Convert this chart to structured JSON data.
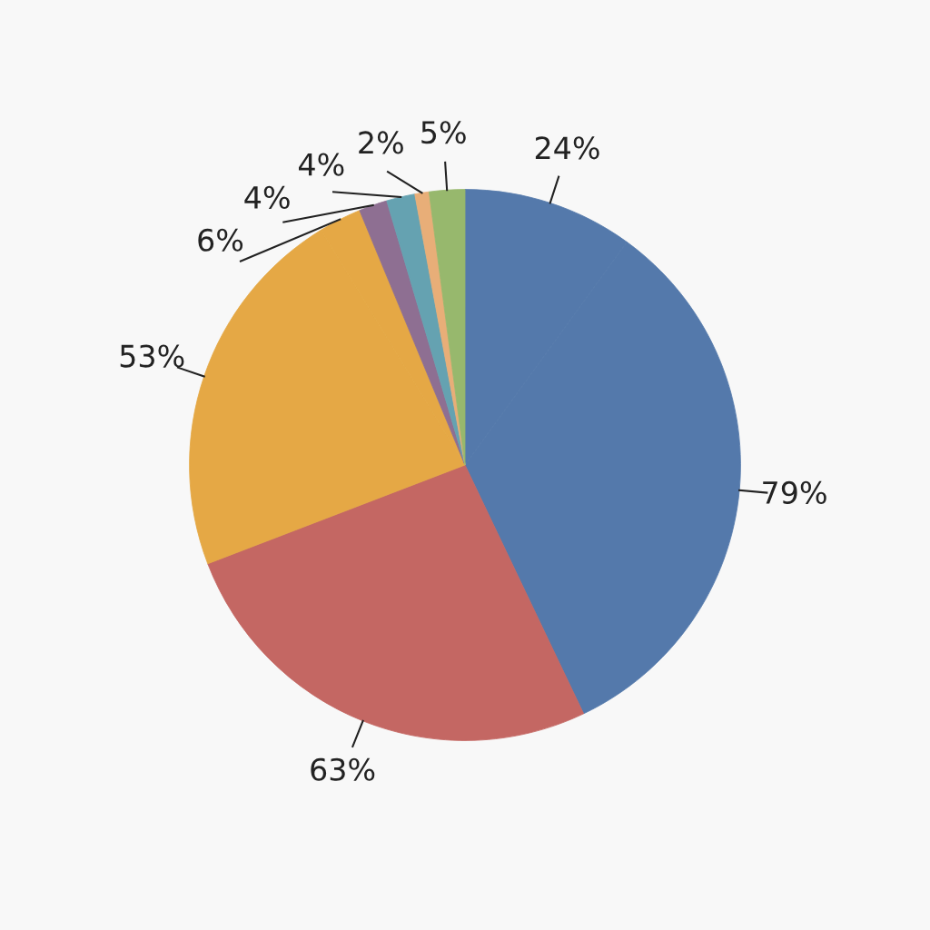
{
  "chart_data": {
    "type": "pie",
    "categories": [
      null,
      null,
      null,
      null,
      null,
      null,
      null,
      null,
      null
    ],
    "values": [
      24,
      79,
      63,
      53,
      6,
      4,
      4,
      2,
      5
    ],
    "colors": [
      "#5479ab",
      "#5479ab",
      "#c46763",
      "#e5a845",
      "#e5a845",
      "#8e6f92",
      "#65a2b1",
      "#e8ae78",
      "#97b86d"
    ],
    "value_labels": [
      "24%",
      "79%",
      "63%",
      "53%",
      "6%",
      "4%",
      "4%",
      "2%",
      "5%"
    ]
  }
}
